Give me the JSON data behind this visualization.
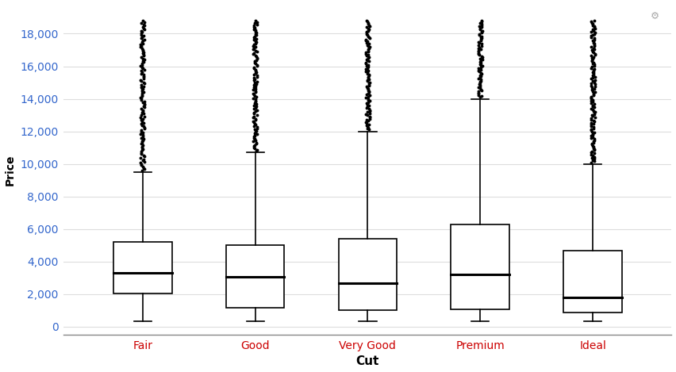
{
  "categories": [
    "Fair",
    "Good",
    "Very Good",
    "Premium",
    "Ideal"
  ],
  "xlabel": "Cut",
  "ylabel": "Price",
  "xlabel_fontsize": 11,
  "ylabel_fontsize": 10,
  "tick_label_color_x": "#CC0000",
  "tick_label_color_y": "#3366CC",
  "ylim": [
    -500,
    19800
  ],
  "yticks": [
    0,
    2000,
    4000,
    6000,
    8000,
    10000,
    12000,
    14000,
    16000,
    18000
  ],
  "ytick_labels": [
    "0",
    "2,000",
    "4,000",
    "6,000",
    "8,000",
    "10,000",
    "12,000",
    "14,000",
    "16,000",
    "18,000"
  ],
  "background_color": "#FFFFFF",
  "grid_color": "#DDDDDD",
  "box_color": "#000000",
  "box_fill": "#FFFFFF",
  "whisker_color": "#000000",
  "median_color": "#000000",
  "outlier_color": "#000000",
  "boxes": [
    {
      "name": "Fair",
      "q1": 2050,
      "median": 3282,
      "q3": 5206,
      "whisker_low": 337,
      "whisker_high": 9500,
      "outlier_min": 9600,
      "outlier_max": 18800,
      "n_outliers": 120
    },
    {
      "name": "Good",
      "q1": 1145,
      "median": 3050,
      "q3": 5028,
      "whisker_low": 327,
      "whisker_high": 10700,
      "outlier_min": 10800,
      "outlier_max": 18800,
      "n_outliers": 110
    },
    {
      "name": "Very Good",
      "q1": 1000,
      "median": 2648,
      "q3": 5373,
      "whisker_low": 336,
      "whisker_high": 12000,
      "outlier_min": 12100,
      "outlier_max": 18800,
      "n_outliers": 100
    },
    {
      "name": "Premium",
      "q1": 1046,
      "median": 3185,
      "q3": 6296,
      "whisker_low": 326,
      "whisker_high": 14000,
      "outlier_min": 14100,
      "outlier_max": 18800,
      "n_outliers": 70
    },
    {
      "name": "Ideal",
      "q1": 878,
      "median": 1810,
      "q3": 4678,
      "whisker_low": 326,
      "whisker_high": 10000,
      "outlier_min": 10100,
      "outlier_max": 18800,
      "n_outliers": 130
    }
  ]
}
